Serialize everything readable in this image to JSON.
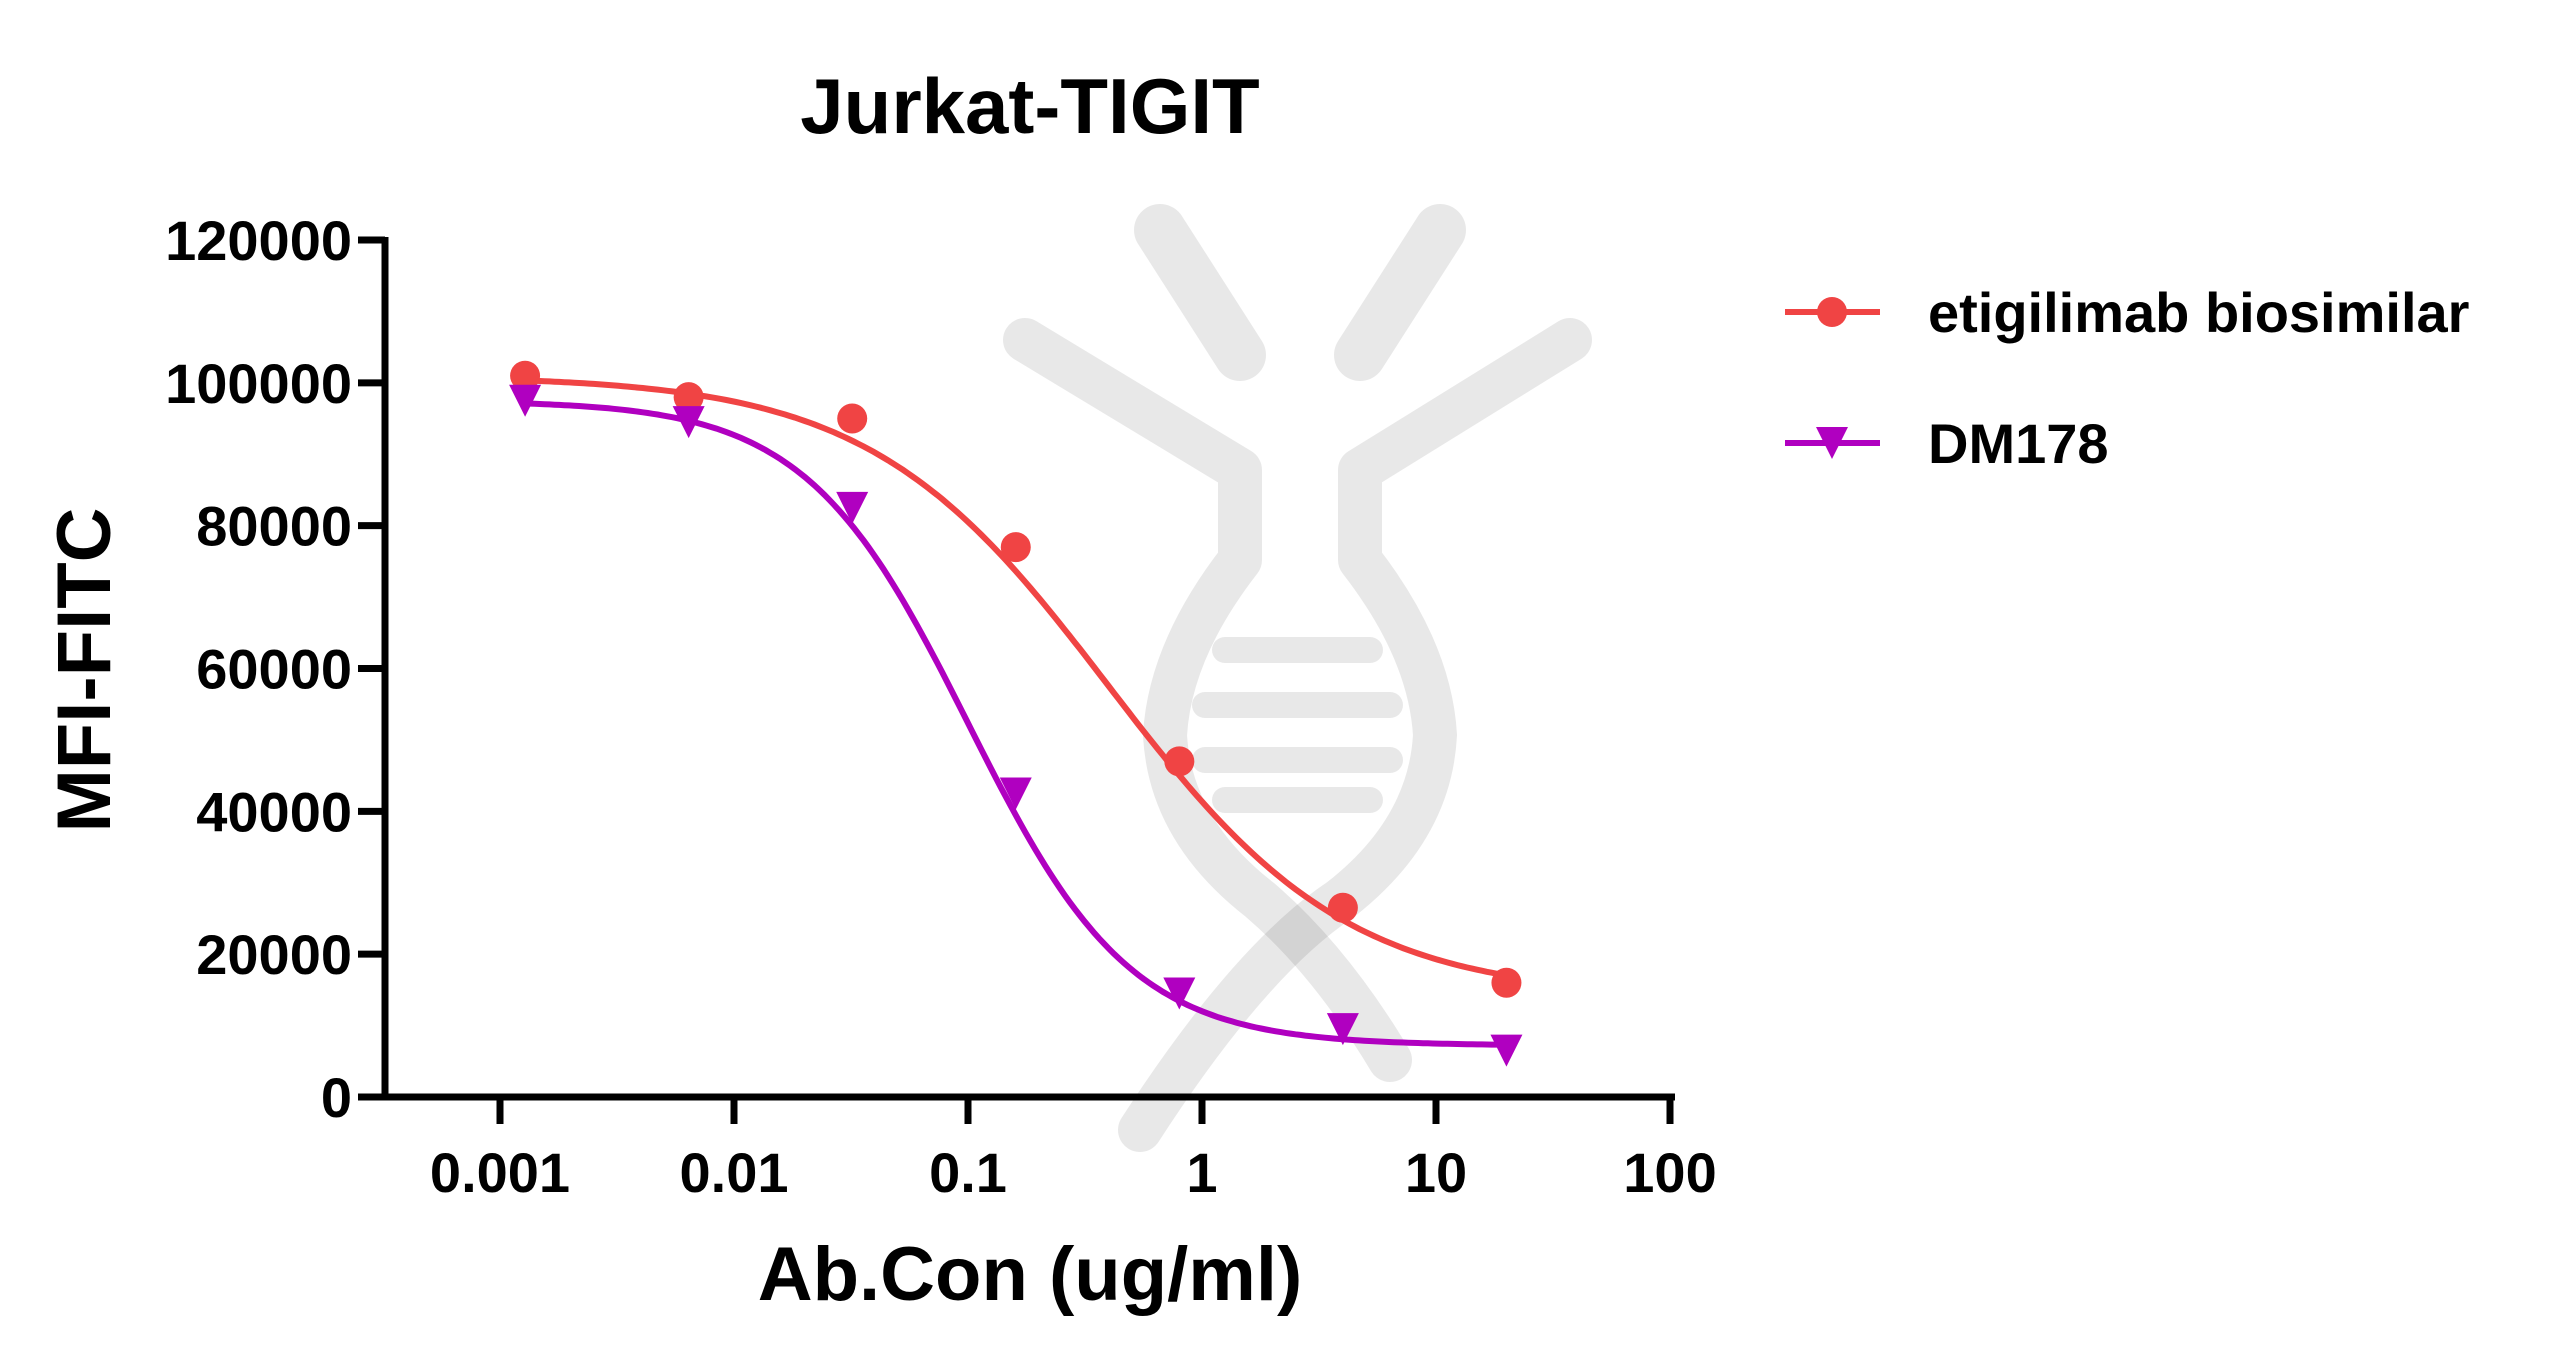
{
  "chart_data": {
    "type": "scatter",
    "title": "Jurkat-TIGIT",
    "xlabel": "Ab.Con (ug/ml)",
    "ylabel": "MFI-FITC",
    "xscale": "log",
    "xlim": [
      0.0005,
      100
    ],
    "ylim": [
      0,
      120000
    ],
    "x_ticks": [
      "0.001",
      "0.01",
      "0.1",
      "1",
      "10",
      "100"
    ],
    "y_ticks": [
      "0",
      "20000",
      "40000",
      "60000",
      "80000",
      "100000",
      "120000"
    ],
    "grid": false,
    "legend_position": "right",
    "series": [
      {
        "name": "etigilimab biosimilar",
        "color": "#f04444",
        "marker": "circle",
        "fit": "sigmoid",
        "x": [
          0.00128,
          0.0064,
          0.032,
          0.16,
          0.8,
          4,
          20
        ],
        "y": [
          101000,
          98000,
          95000,
          77000,
          47000,
          26500,
          16000
        ],
        "curve": {
          "bottom": 14000,
          "top": 101000,
          "ec50": 0.4,
          "hill": 0.85
        }
      },
      {
        "name": "DM178",
        "color": "#b000c0",
        "marker": "triangle-down",
        "fit": "sigmoid",
        "x": [
          0.00128,
          0.0064,
          0.032,
          0.16,
          0.8,
          4,
          20
        ],
        "y": [
          97500,
          94500,
          82500,
          42500,
          14500,
          9500,
          6500
        ],
        "curve": {
          "bottom": 7200,
          "top": 97500,
          "ec50": 0.1,
          "hill": 1.25
        }
      }
    ]
  }
}
